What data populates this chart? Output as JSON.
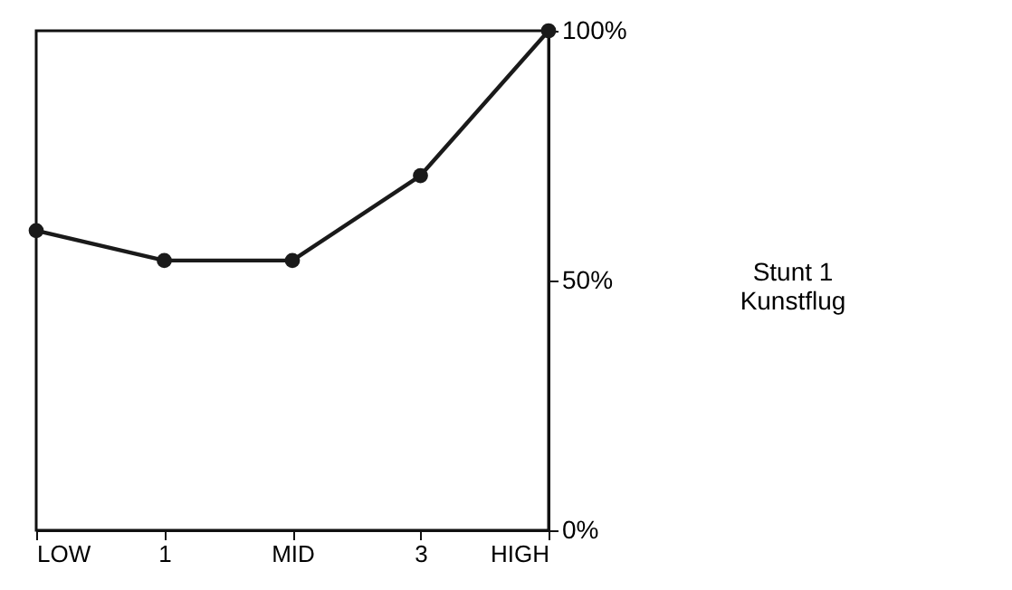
{
  "chart_data": {
    "type": "line",
    "categories": [
      "LOW",
      "1",
      "MID",
      "3",
      "HIGH"
    ],
    "series": [
      {
        "color": "#1a1a1a",
        "values": [
          60,
          54,
          54,
          71,
          100
        ]
      }
    ],
    "ylim": [
      0,
      100
    ],
    "yticks": [
      {
        "value": 0,
        "label": "0%"
      },
      {
        "value": 50,
        "label": "50%"
      },
      {
        "value": 100,
        "label": "100%"
      }
    ],
    "grid": false,
    "marker": "circle",
    "line_style": "solid",
    "annotations": [
      "Stunt 1\nKunstflug"
    ]
  }
}
